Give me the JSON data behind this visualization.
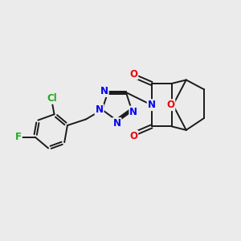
{
  "background_color": "#ebebeb",
  "bond_color": "#1a1a1a",
  "atoms": {
    "F": {
      "color": "#22aa22"
    },
    "Cl": {
      "color": "#22aa22"
    },
    "N": {
      "color": "#0000ee"
    },
    "O": {
      "color": "#ee0000"
    }
  },
  "figsize": [
    3.0,
    3.0
  ],
  "dpi": 100
}
